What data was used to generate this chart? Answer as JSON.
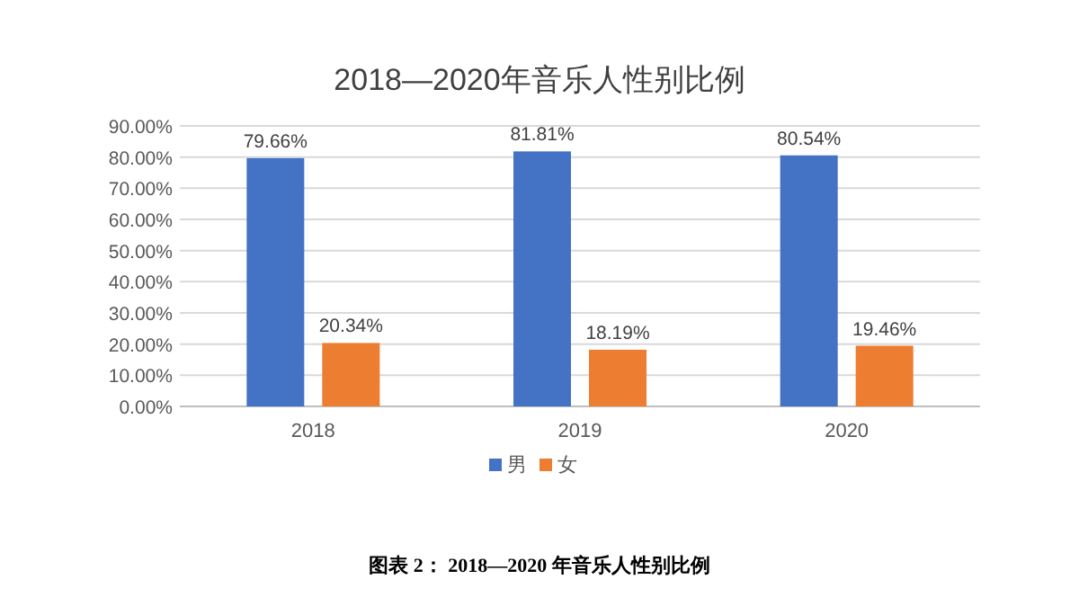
{
  "chart_data": {
    "type": "bar",
    "title": "2018—2020年音乐人性别比例",
    "categories": [
      "2018",
      "2019",
      "2020"
    ],
    "series": [
      {
        "name": "男",
        "color": "#4472c4",
        "values": [
          79.66,
          81.81,
          80.54
        ],
        "value_labels": [
          "79.66%",
          "81.81%",
          "80.54%"
        ]
      },
      {
        "name": "女",
        "color": "#ed7d31",
        "values": [
          20.34,
          18.19,
          19.46
        ],
        "value_labels": [
          "20.34%",
          "18.19%",
          "19.46%"
        ]
      }
    ],
    "ylim": [
      0,
      90
    ],
    "yticks": [
      {
        "value": 0,
        "label": "0.00%"
      },
      {
        "value": 10,
        "label": "10.00%"
      },
      {
        "value": 20,
        "label": "20.00%"
      },
      {
        "value": 30,
        "label": "30.00%"
      },
      {
        "value": 40,
        "label": "40.00%"
      },
      {
        "value": 50,
        "label": "50.00%"
      },
      {
        "value": 60,
        "label": "60.00%"
      },
      {
        "value": 70,
        "label": "70.00%"
      },
      {
        "value": 80,
        "label": "80.00%"
      },
      {
        "value": 90,
        "label": "90.00%"
      }
    ],
    "grid": "y",
    "legend": "bottom",
    "annotations": [
      "图表 2： 2018—2020 年音乐人性别比例"
    ]
  }
}
